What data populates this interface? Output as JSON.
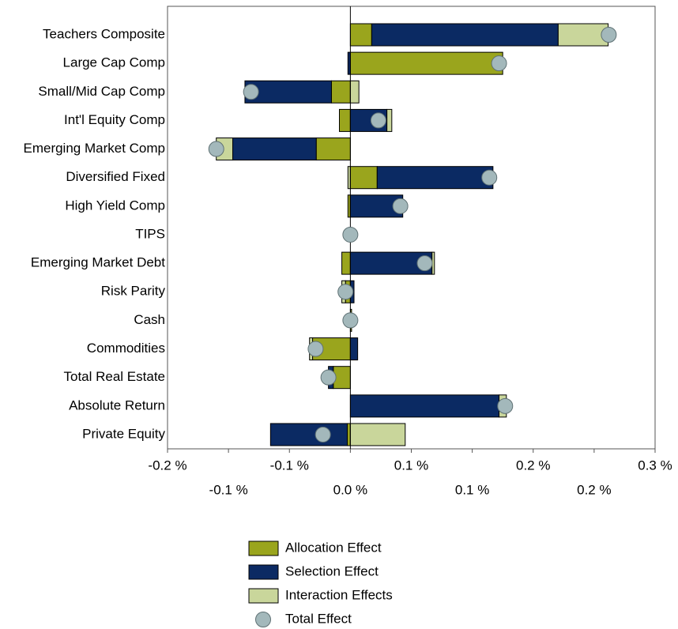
{
  "chart_data": {
    "type": "bar",
    "categories": [
      "Teachers Composite",
      "Large Cap Comp",
      "Small/Mid Cap Comp",
      "Int'l Equity Comp",
      "Emerging Market Comp",
      "Diversified Fixed",
      "High Yield Comp",
      "TIPS",
      "Emerging Market Debt",
      "Risk Parity",
      "Cash",
      "Commodities",
      "Total Real Estate",
      "Absolute Return",
      "Private Equity"
    ],
    "series": [
      {
        "name": "Allocation Effect",
        "color": "#9aa51d",
        "values": [
          0.0175,
          0.125,
          -0.0155,
          -0.009,
          -0.028,
          0.022,
          -0.002,
          0,
          -0.007,
          -0.004,
          0.001,
          -0.031,
          -0.014,
          0,
          -0.0025
        ]
      },
      {
        "name": "Selection Effect",
        "color": "#0b2a63",
        "values": [
          0.153,
          -0.002,
          -0.071,
          0.03,
          -0.0685,
          0.095,
          0.043,
          0,
          0.067,
          0.003,
          0,
          0.006,
          -0.004,
          0.122,
          -0.063
        ]
      },
      {
        "name": "Interaction Effects",
        "color": "#c9d69b",
        "values": [
          0.041,
          0,
          0.007,
          0.004,
          -0.0135,
          -0.002,
          0,
          0,
          0.002,
          -0.003,
          0,
          -0.0025,
          0,
          0.006,
          0.045
        ]
      },
      {
        "name": "Total Effect",
        "color": "#a3b8bb",
        "marker": "circle",
        "values": [
          0.212,
          0.122,
          -0.0815,
          0.023,
          -0.11,
          0.114,
          0.041,
          0,
          0.061,
          -0.004,
          0,
          -0.0285,
          -0.018,
          0.127,
          -0.0225
        ]
      }
    ],
    "xlim": [
      -0.15,
      0.25
    ],
    "xticks": [
      {
        "value": -0.15,
        "label": "-0.2 %"
      },
      {
        "value": -0.1,
        "label": "-0.1 %"
      },
      {
        "value": -0.05,
        "label": "-0.1 %"
      },
      {
        "value": 0,
        "label": "0.0 %"
      },
      {
        "value": 0.05,
        "label": "0.1 %"
      },
      {
        "value": 0.1,
        "label": "0.1 %"
      },
      {
        "value": 0.15,
        "label": "0.2 %"
      },
      {
        "value": 0.2,
        "label": "0.2 %"
      },
      {
        "value": 0.25,
        "label": "0.3 %"
      }
    ],
    "legend": "bottom"
  }
}
